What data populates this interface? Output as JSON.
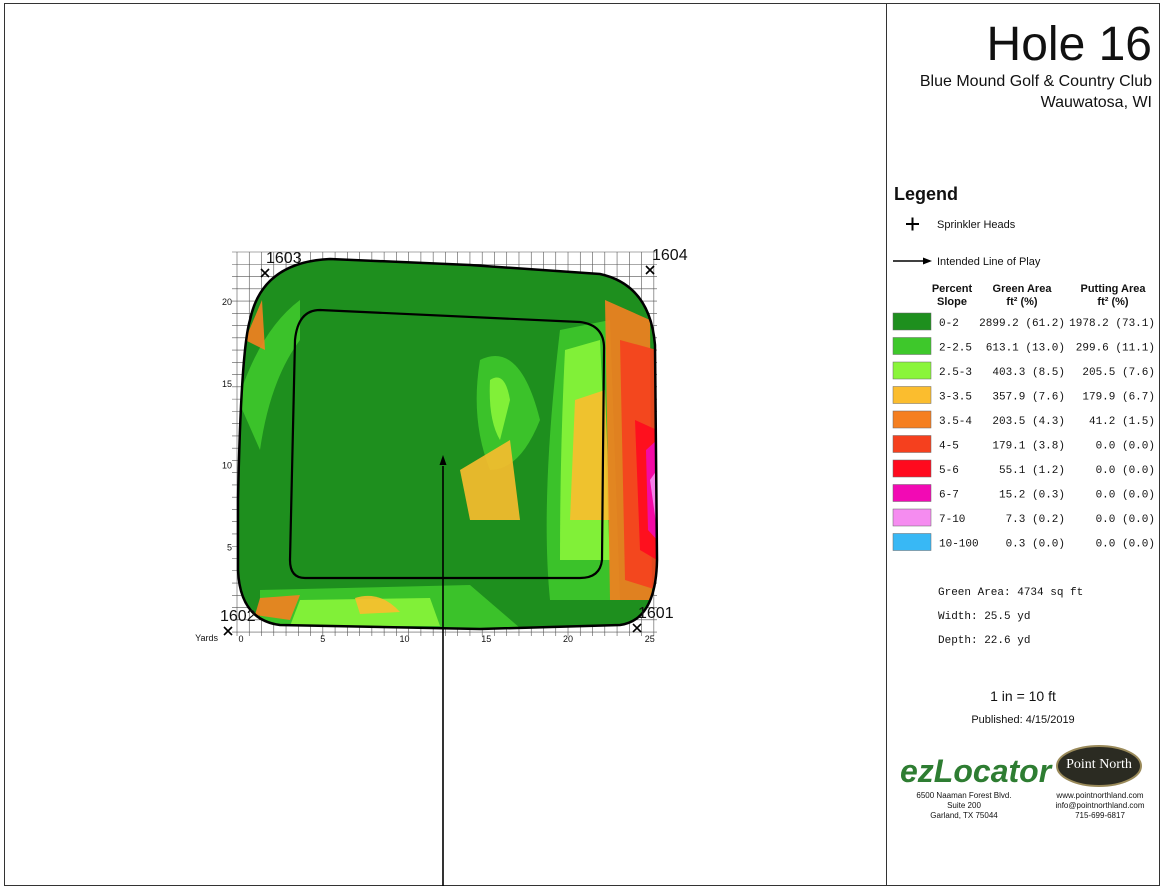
{
  "header": {
    "title": "Hole 16",
    "club": "Blue Mound Golf & Country Club",
    "location": "Wauwatosa, WI"
  },
  "map": {
    "axis_label": "Yards",
    "x_ticks": [
      0,
      5,
      10,
      15,
      20,
      25
    ],
    "y_ticks": [
      5,
      10,
      15,
      20
    ],
    "sprinklers": [
      {
        "label": "1603"
      },
      {
        "label": "1604"
      },
      {
        "label": "1602"
      },
      {
        "label": "1601"
      }
    ]
  },
  "legend": {
    "title": "Legend",
    "sprinkler": "Sprinkler Heads",
    "line_of_play": "Intended Line of Play",
    "columns": [
      [
        "Percent",
        "Slope"
      ],
      [
        "Green Area",
        "ft² (%)"
      ],
      [
        "Putting Area",
        "ft² (%)"
      ]
    ],
    "rows": [
      {
        "slope": "0-2",
        "color": "#1e8f1e",
        "green": "2899.2 (61.2)",
        "putting": "1978.2 (73.1)"
      },
      {
        "slope": "2-2.5",
        "color": "#3ec82b",
        "green": "613.1 (13.0)",
        "putting": "299.6 (11.1)"
      },
      {
        "slope": "2.5-3",
        "color": "#8af53a",
        "green": "403.3 (8.5)",
        "putting": "205.5 (7.6)"
      },
      {
        "slope": "3-3.5",
        "color": "#fbbd2e",
        "green": "357.9 (7.6)",
        "putting": "179.9 (6.7)"
      },
      {
        "slope": "3.5-4",
        "color": "#f57f20",
        "green": "203.5 (4.3)",
        "putting": "41.2 (1.5)"
      },
      {
        "slope": "4-5",
        "color": "#f5401e",
        "green": "179.1 (3.8)",
        "putting": "0.0 (0.0)"
      },
      {
        "slope": "5-6",
        "color": "#ff0a1e",
        "green": "55.1 (1.2)",
        "putting": "0.0 (0.0)"
      },
      {
        "slope": "6-7",
        "color": "#f20ab4",
        "green": "15.2 (0.3)",
        "putting": "0.0 (0.0)"
      },
      {
        "slope": "7-10",
        "color": "#f58cf0",
        "green": "7.3 (0.2)",
        "putting": "0.0 (0.0)"
      },
      {
        "slope": "10-100",
        "color": "#38b8f5",
        "green": "0.3 (0.0)",
        "putting": "0.0 (0.0)"
      }
    ]
  },
  "stats": [
    "Green Area: 4734 sq ft",
    "Width: 25.5 yd",
    "Depth: 22.6 yd"
  ],
  "scale": "1 in = 10 ft",
  "published": "Published: 4/15/2019",
  "footer": {
    "brand": "ezLocator",
    "address": [
      "6500 Naaman Forest Blvd.",
      "Suite 200",
      "Garland, TX  75044"
    ],
    "partner": "Point North",
    "contact": [
      "www.pointnorthland.com",
      "info@pointnorthland.com",
      "715-699-6817"
    ]
  }
}
